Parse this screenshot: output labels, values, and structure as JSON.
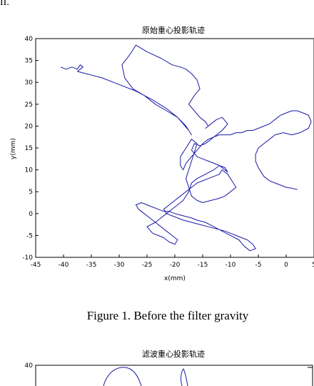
{
  "page": {
    "corner_text": "II.",
    "caption": "Figure 1.    Before the filter gravity"
  },
  "figure2": {
    "title": "滤波重心投影轨迹",
    "y_tick_visible": "40"
  },
  "chart_data": {
    "type": "line",
    "title": "原始重心投影轨迹",
    "xlabel": "x(mm)",
    "ylabel": "y(mm)",
    "xlim": [
      -45,
      5
    ],
    "ylim": [
      -10,
      40
    ],
    "xticks": [
      "-45",
      "-40",
      "-35",
      "-30",
      "-25",
      "-20",
      "-15",
      "-10",
      "-5",
      "0",
      "5"
    ],
    "yticks": [
      "-10",
      "-5",
      "0",
      "5",
      "10",
      "15",
      "20",
      "25",
      "30",
      "35",
      "40"
    ],
    "grid": false,
    "series": [
      {
        "color": "#1a1aa6",
        "x": [
          -40.5,
          -39.5,
          -38.5,
          -37.5,
          -37.0,
          -36.5,
          -37.5,
          -36.0,
          -33.0,
          -30.0,
          -27.0,
          -24.0,
          -21.5,
          -19.5,
          -18.0,
          -17.0,
          -17.5,
          -18.5,
          -19.5,
          -21.5,
          -23.5,
          -25.5,
          -27.5,
          -29.0,
          -29.5,
          -28.0,
          -27.0,
          -25.0,
          -22.5,
          -20.5,
          -19.0,
          -18.0,
          -17.0,
          -16.0,
          -15.5,
          -16.5,
          -17.5,
          -16.5,
          -15.5,
          -14.5,
          -14.0,
          -14.5,
          -13.5,
          -12.5,
          -11.5,
          -10.5,
          -11.5,
          -12.5,
          -13.5,
          -14.5,
          -15.5,
          -16.5,
          -17.0,
          -16.0,
          -15.0,
          -14.0,
          -13.0,
          -12.0,
          -11.0,
          -10.5,
          -11.0,
          -12.0,
          -13.0,
          -14.5,
          -16.0,
          -17.0,
          -17.5,
          -18.5,
          -20.0,
          -21.5,
          -22.5,
          -23.5,
          -25.0,
          -24.0,
          -23.0,
          -22.0,
          -21.0,
          -20.0,
          -19.5,
          -20.5,
          -21.5,
          -22.5,
          -23.5,
          -24.5,
          -25.5,
          -26.5,
          -27.0,
          -26.0,
          -25.0,
          -24.0,
          -23.0,
          -22.0,
          -21.0,
          -20.0,
          -18.5,
          -17.0,
          -16.0,
          -14.5,
          -13.0,
          -11.5,
          -10.0,
          -8.5,
          -7.5,
          -6.5,
          -5.5,
          -6.0,
          -7.0,
          -8.0,
          -9.0,
          -10.0,
          -11.0,
          -12.5,
          -14.0,
          -15.5,
          -17.0,
          -18.5,
          -19.5,
          -20.5,
          -21.5,
          -22.0,
          -21.0,
          -20.0,
          -19.0,
          -18.0,
          -17.0,
          -16.0,
          -15.0,
          -14.0,
          -13.0,
          -12.0,
          -11.5,
          -11.0,
          -10.5,
          -10.0,
          -9.5,
          -9.0,
          -10.0,
          -11.0,
          -12.0,
          -13.5,
          -15.0,
          -16.0,
          -17.0,
          -17.5,
          -18.0,
          -17.5,
          -17.0,
          -16.5,
          -16.0,
          -17.0,
          -18.0,
          -19.0,
          -19.0,
          -18.5,
          -18.0,
          -17.0,
          -16.0,
          -15.0,
          -14.0,
          -13.0,
          -12.0,
          -11.0,
          -10.0,
          -9.0,
          -8.0,
          -7.0,
          -6.0,
          -5.0,
          -4.0,
          -3.0,
          -2.0,
          -1.0,
          0.0,
          1.0,
          2.0,
          3.0,
          4.0,
          4.5,
          4.0,
          2.5,
          1.0,
          -0.5,
          -2.0,
          -3.0,
          -4.0,
          -5.0,
          -5.5,
          -5.5,
          -5.0,
          -4.5,
          -4.0,
          -3.0,
          -2.0,
          -1.0,
          0.0,
          1.0,
          2.0
        ],
        "y": [
          33.5,
          33.0,
          33.5,
          33.0,
          34.0,
          33.5,
          32.5,
          32.0,
          31.0,
          29.5,
          28.0,
          26.0,
          24.0,
          22.0,
          20.0,
          18.0,
          19.0,
          20.5,
          22.0,
          23.5,
          25.0,
          27.0,
          28.5,
          31.0,
          34.0,
          36.5,
          38.5,
          37.0,
          35.5,
          34.0,
          33.5,
          33.0,
          32.0,
          30.5,
          28.5,
          27.0,
          25.0,
          23.5,
          22.0,
          21.0,
          20.0,
          19.5,
          20.5,
          21.5,
          22.0,
          20.5,
          19.0,
          18.0,
          17.0,
          16.0,
          15.5,
          16.0,
          14.5,
          13.0,
          12.5,
          12.0,
          11.5,
          11.0,
          10.0,
          9.5,
          10.5,
          11.0,
          10.0,
          9.0,
          8.0,
          7.0,
          5.0,
          3.0,
          1.5,
          0.0,
          -1.0,
          -2.0,
          -3.0,
          -4.5,
          -5.0,
          -5.5,
          -6.5,
          -7.0,
          -6.0,
          -5.0,
          -4.0,
          -3.0,
          -2.0,
          -1.0,
          0.0,
          1.0,
          2.0,
          2.5,
          2.0,
          1.5,
          1.0,
          0.5,
          0.5,
          0.0,
          -0.5,
          -1.0,
          -1.5,
          -2.0,
          -3.0,
          -4.0,
          -5.0,
          -6.0,
          -7.5,
          -8.5,
          -8.0,
          -7.0,
          -6.0,
          -5.5,
          -5.0,
          -4.5,
          -4.0,
          -3.5,
          -3.0,
          -2.5,
          -2.0,
          -1.5,
          -1.0,
          -0.5,
          0.0,
          1.0,
          2.0,
          3.0,
          4.0,
          5.0,
          6.0,
          7.0,
          7.5,
          8.0,
          8.5,
          9.0,
          10.0,
          9.5,
          9.0,
          8.0,
          7.0,
          6.0,
          5.0,
          4.0,
          3.5,
          3.0,
          2.5,
          3.0,
          4.0,
          6.0,
          8.0,
          10.0,
          12.0,
          14.0,
          16.0,
          17.0,
          15.0,
          13.0,
          11.0,
          10.0,
          11.5,
          13.0,
          14.5,
          16.0,
          17.0,
          17.5,
          18.0,
          18.0,
          18.0,
          18.5,
          18.5,
          19.0,
          19.0,
          19.5,
          20.0,
          20.5,
          21.5,
          22.5,
          23.0,
          23.5,
          23.5,
          23.0,
          22.5,
          21.0,
          19.5,
          18.5,
          18.0,
          18.5,
          18.0,
          17.0,
          16.0,
          15.0,
          13.5,
          12.0,
          10.5,
          9.5,
          8.5,
          7.5,
          7.0,
          6.5,
          6.0,
          5.8,
          5.5
        ]
      }
    ]
  }
}
